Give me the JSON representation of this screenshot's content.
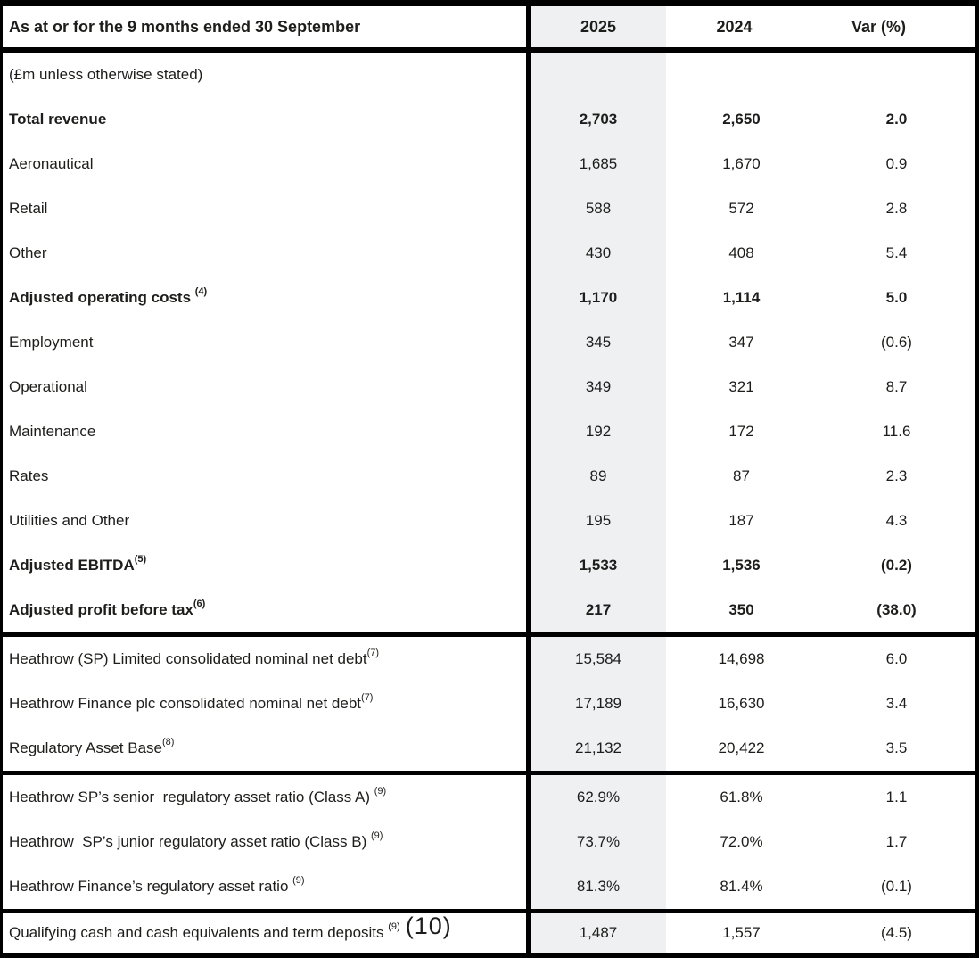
{
  "table": {
    "colors": {
      "shade": "#eef0f2",
      "border": "#000000",
      "text": "#1d1d1b"
    },
    "header": {
      "label": "As at or for the 9 months ended 30 September",
      "col_2025": "2025",
      "col_2024": "2024",
      "col_var": "Var (%)"
    },
    "sections": [
      {
        "rows": [
          {
            "label": "(£m unless otherwise stated)",
            "bold": false,
            "v2025": "",
            "v2024": "",
            "var": ""
          },
          {
            "label": "Total revenue",
            "bold": true,
            "v2025": "2,703",
            "v2024": "2,650",
            "var": "2.0"
          },
          {
            "label": "Aeronautical",
            "bold": false,
            "v2025": "1,685",
            "v2024": "1,670",
            "var": "0.9"
          },
          {
            "label": "Retail",
            "bold": false,
            "v2025": "588",
            "v2024": "572",
            "var": "2.8"
          },
          {
            "label": "Other",
            "bold": false,
            "v2025": "430",
            "v2024": "408",
            "var": "5.4"
          },
          {
            "label": "Adjusted operating costs ",
            "sup": "(4)",
            "bold": true,
            "v2025": "1,170",
            "v2024": "1,114",
            "var": "5.0"
          },
          {
            "label": "Employment",
            "bold": false,
            "v2025": "345",
            "v2024": "347",
            "var": "(0.6)"
          },
          {
            "label": "Operational",
            "bold": false,
            "v2025": "349",
            "v2024": "321",
            "var": "8.7"
          },
          {
            "label": "Maintenance",
            "bold": false,
            "v2025": "192",
            "v2024": "172",
            "var": "11.6"
          },
          {
            "label": "Rates",
            "bold": false,
            "v2025": "89",
            "v2024": "87",
            "var": "2.3"
          },
          {
            "label": "Utilities and Other",
            "bold": false,
            "v2025": "195",
            "v2024": "187",
            "var": "4.3"
          },
          {
            "label": "Adjusted EBITDA",
            "sup": "(5)",
            "bold": true,
            "v2025": "1,533",
            "v2024": "1,536",
            "var": "(0.2)"
          },
          {
            "label": "Adjusted profit before tax",
            "sup": "(6)",
            "bold": true,
            "v2025": "217",
            "v2024": "350",
            "var": "(38.0)"
          }
        ]
      },
      {
        "rows": [
          {
            "label": "Heathrow (SP) Limited consolidated nominal net debt",
            "sup": "(7)",
            "bold": false,
            "v2025": "15,584",
            "v2024": "14,698",
            "var": "6.0"
          },
          {
            "label": "Heathrow Finance plc consolidated nominal net debt",
            "sup": "(7)",
            "bold": false,
            "v2025": "17,189",
            "v2024": "16,630",
            "var": "3.4"
          },
          {
            "label": "Regulatory Asset Base",
            "sup": "(8)",
            "bold": false,
            "v2025": "21,132",
            "v2024": "20,422",
            "var": "3.5"
          }
        ]
      },
      {
        "rows": [
          {
            "label": "Heathrow SP’s senior  regulatory asset ratio (Class A) ",
            "sup": "(9)",
            "bold": false,
            "v2025": "62.9%",
            "v2024": "61.8%",
            "var": "1.1"
          },
          {
            "label": "Heathrow  SP’s junior regulatory asset ratio (Class B) ",
            "sup": "(9)",
            "bold": false,
            "v2025": "73.7%",
            "v2024": "72.0%",
            "var": "1.7"
          },
          {
            "label": "Heathrow Finance’s regulatory asset ratio ",
            "sup": "(9)",
            "bold": false,
            "v2025": "81.3%",
            "v2024": "81.4%",
            "var": "(0.1)"
          }
        ]
      },
      {
        "rows": [
          {
            "label": "Qualifying cash and cash equivalents and term deposits ",
            "sup": "(9)",
            "note": "(10)",
            "bold": false,
            "v2025": "1,487",
            "v2024": "1,557",
            "var": "(4.5)"
          }
        ]
      }
    ]
  }
}
